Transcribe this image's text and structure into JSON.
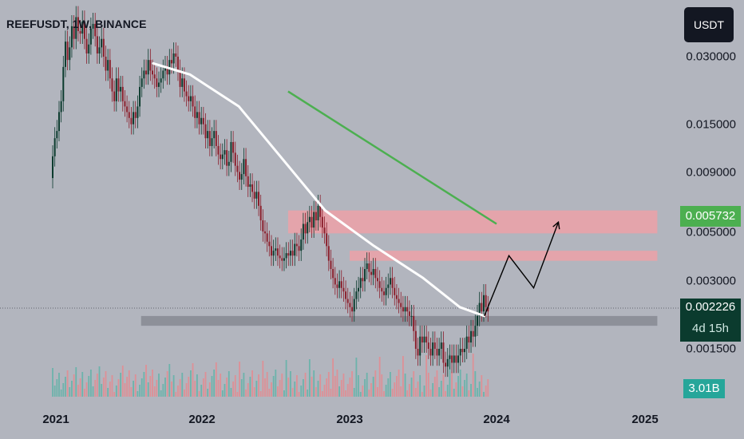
{
  "symbol_title": "REEFUSDT, 1W, BINANCE",
  "currency": "USDT",
  "price_axis": {
    "ticks": [
      "0.030000",
      "0.015000",
      "0.009000",
      "0.005000",
      "0.003000",
      "0.001500"
    ]
  },
  "time_axis": {
    "ticks": [
      "2021",
      "2022",
      "2023",
      "2024",
      "2025"
    ]
  },
  "badges": {
    "target_price": "0.005732",
    "current_price": "0.002226",
    "countdown": "4d 15h",
    "volume": "3.01B"
  },
  "colors": {
    "background": "#b2b5be",
    "up_candle": "#0b3b2e",
    "down_candle": "#8b1e2b",
    "ma_line": "#ffffff",
    "trend_line": "#4caf50",
    "resistance_zone": "#f0a0a6",
    "support_zone": "#888c95",
    "target_badge": "#4caf50",
    "current_badge": "#0b3b2e",
    "volume_up": "#5fb3a8",
    "volume_down": "#e58a8f"
  },
  "chart_data": {
    "type": "candlestick",
    "title": "REEFUSDT, 1W, BINANCE",
    "price_scale": "log",
    "ylim": [
      0.0011,
      0.045
    ],
    "x_range": [
      "2021-01",
      "2025-02"
    ],
    "closes": [
      0.0108,
      0.013,
      0.014,
      0.017,
      0.019,
      0.027,
      0.035,
      0.029,
      0.033,
      0.041,
      0.036,
      0.045,
      0.039,
      0.038,
      0.043,
      0.036,
      0.031,
      0.034,
      0.04,
      0.042,
      0.037,
      0.031,
      0.033,
      0.036,
      0.03,
      0.026,
      0.029,
      0.024,
      0.021,
      0.019,
      0.024,
      0.021,
      0.022,
      0.019,
      0.018,
      0.017,
      0.016,
      0.015,
      0.017,
      0.016,
      0.018,
      0.022,
      0.024,
      0.026,
      0.025,
      0.029,
      0.026,
      0.025,
      0.024,
      0.022,
      0.023,
      0.024,
      0.026,
      0.027,
      0.025,
      0.029,
      0.028,
      0.031,
      0.03,
      0.026,
      0.022,
      0.024,
      0.021,
      0.02,
      0.019,
      0.02,
      0.018,
      0.016,
      0.017,
      0.015,
      0.016,
      0.015,
      0.013,
      0.014,
      0.012,
      0.013,
      0.014,
      0.012,
      0.011,
      0.0105,
      0.011,
      0.0115,
      0.0098,
      0.0102,
      0.0125,
      0.0112,
      0.0098,
      0.0092,
      0.0085,
      0.009,
      0.0105,
      0.0088,
      0.0079,
      0.0081,
      0.0075,
      0.007,
      0.0075,
      0.0065,
      0.0056,
      0.005,
      0.0049,
      0.0045,
      0.0043,
      0.0039,
      0.0041,
      0.0042,
      0.0039,
      0.0038,
      0.0037,
      0.0038,
      0.004,
      0.0039,
      0.0041,
      0.0039,
      0.0044,
      0.0043,
      0.0041,
      0.0046,
      0.0054,
      0.0049,
      0.0055,
      0.0058,
      0.0052,
      0.0061,
      0.0056,
      0.0065,
      0.0058,
      0.0052,
      0.0049,
      0.0043,
      0.0037,
      0.0034,
      0.0031,
      0.0029,
      0.0028,
      0.003,
      0.0028,
      0.0027,
      0.0025,
      0.0024,
      0.0023,
      0.0022,
      0.0025,
      0.0027,
      0.0028,
      0.0031,
      0.003,
      0.0034,
      0.0036,
      0.0033,
      0.0032,
      0.0034,
      0.0031,
      0.003,
      0.0028,
      0.0027,
      0.0026,
      0.0028,
      0.0029,
      0.0031,
      0.0028,
      0.0026,
      0.0025,
      0.0024,
      0.0023,
      0.0022,
      0.0023,
      0.0022,
      0.0021,
      0.0021,
      0.0018,
      0.0015,
      0.0014,
      0.0017,
      0.0016,
      0.0017,
      0.0016,
      0.0015,
      0.0014,
      0.0016,
      0.0015,
      0.0014,
      0.0015,
      0.0016,
      0.0013,
      0.00125,
      0.00135,
      0.0014,
      0.0013,
      0.0014,
      0.0013,
      0.0014,
      0.0015,
      0.00145,
      0.0015,
      0.0017,
      0.0016,
      0.0018,
      0.0017,
      0.0019,
      0.0021,
      0.0024,
      0.0022,
      0.0026,
      0.0023,
      0.0022
    ],
    "overlays": {
      "moving_average": [
        {
          "date": "2021-09",
          "price": 0.028
        },
        {
          "date": "2021-12",
          "price": 0.025
        },
        {
          "date": "2022-04",
          "price": 0.018
        },
        {
          "date": "2022-08",
          "price": 0.0098
        },
        {
          "date": "2022-11",
          "price": 0.0062
        },
        {
          "date": "2023-03",
          "price": 0.0043
        },
        {
          "date": "2023-07",
          "price": 0.0031
        },
        {
          "date": "2023-10",
          "price": 0.0023
        },
        {
          "date": "2023-12",
          "price": 0.0021
        }
      ],
      "downtrend_line": [
        {
          "date": "2022-08",
          "price": 0.021
        },
        {
          "date": "2024-01",
          "price": 0.0054
        }
      ],
      "resistance_zones": [
        {
          "from": "2022-08",
          "to": "2025-02",
          "low": 0.0049,
          "high": 0.0062
        },
        {
          "from": "2023-01",
          "to": "2025-02",
          "low": 0.0037,
          "high": 0.0041
        }
      ],
      "support_zone": {
        "from": "2021-08",
        "to": "2025-02",
        "low": 0.0019,
        "high": 0.0021
      },
      "projection_path": [
        {
          "date": "2023-12",
          "price": 0.0021
        },
        {
          "date": "2024-02",
          "price": 0.0039
        },
        {
          "date": "2024-04",
          "price": 0.0028
        },
        {
          "date": "2024-06",
          "price": 0.0055
        }
      ]
    }
  }
}
